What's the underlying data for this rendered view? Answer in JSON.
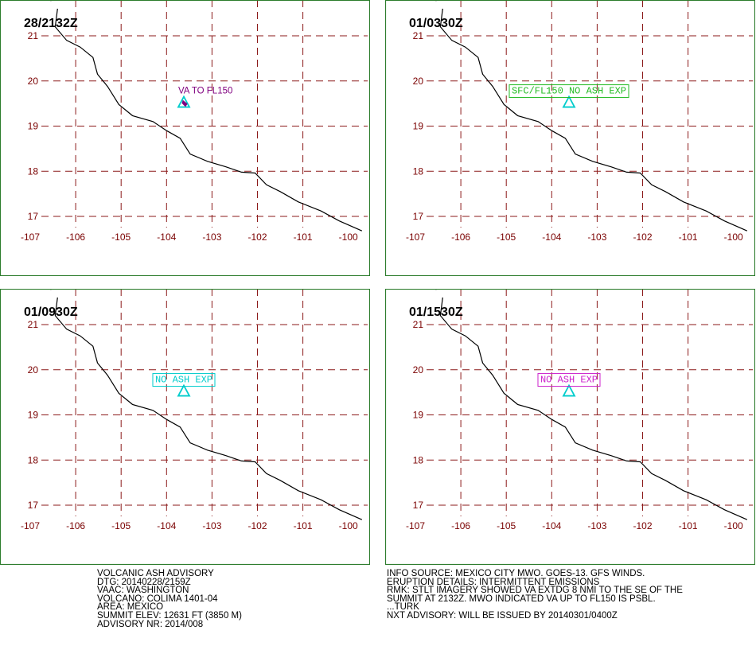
{
  "x_ticks": [
    "-107",
    "-106",
    "-105",
    "-104",
    "-103",
    "-102",
    "-101",
    "-100"
  ],
  "y_ticks": [
    "21",
    "20",
    "19",
    "18",
    "17"
  ],
  "volcano": {
    "lon": -103.62,
    "lat": 19.51,
    "icon": "volcano-triangle-icon"
  },
  "panels": [
    {
      "time": "28/2132Z",
      "note": "VA TO FL150",
      "color": "#800080",
      "boxed": false
    },
    {
      "time": "01/0330Z",
      "note": "SFC/FL150 NO ASH EXP",
      "color": "#22bb22",
      "boxed": true
    },
    {
      "time": "01/0930Z",
      "note": "NO ASH EXP",
      "color": "#00cccc",
      "boxed": true
    },
    {
      "time": "01/1530Z",
      "note": "NO ASH EXP",
      "color": "#cc22cc",
      "boxed": true
    }
  ],
  "colors": {
    "grid": "#8b1a1a",
    "frame": "#2e7d2e",
    "coast": "#000000",
    "volcano": "#00cccc"
  },
  "footer_left": [
    "VOLCANIC ASH ADVISORY",
    "DTG: 20140228/2159Z",
    "VAAC: WASHINGTON",
    "VOLCANO: COLIMA 1401-04",
    "AREA: MEXICO",
    "SUMMIT ELEV: 12631 FT (3850 M)",
    "ADVISORY NR: 2014/008"
  ],
  "footer_right": [
    "INFO SOURCE: MEXICO CITY MWO. GOES-13. GFS WINDS.",
    "ERUPTION DETAILS: INTERMITTENT EMISSIONS",
    "RMK: STLT IMAGERY SHOWED VA EXTDG 8 NMI TO THE SE OF THE",
    "SUMMIT AT 2132Z. MWO INDICATED VA UP TO FL150 IS PSBL.",
    "...TURK",
    "NXT ADVISORY: WILL BE ISSUED BY 20140301/0400Z"
  ]
}
